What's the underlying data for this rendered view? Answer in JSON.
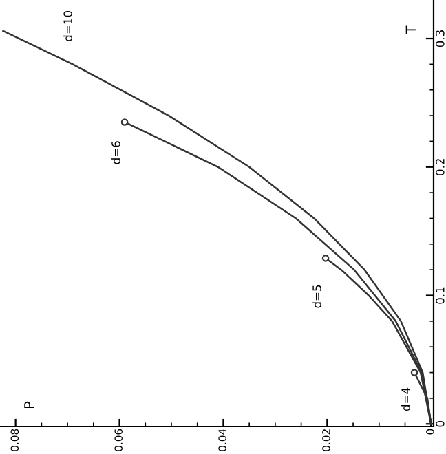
{
  "chart_data": {
    "type": "line",
    "annotations": [
      "P"
    ],
    "ylabel": "T",
    "series": [
      {
        "name": "d=10",
        "color": "#333333",
        "x": [
          0,
          0.0016,
          0.0058,
          0.0128,
          0.0225,
          0.035,
          0.0505,
          0.069,
          0.0824
        ],
        "values": [
          0,
          0.04,
          0.08,
          0.12,
          0.16,
          0.2,
          0.24,
          0.28,
          0.306
        ]
      },
      {
        "name": "d=6",
        "color": "#333333",
        "x": [
          0,
          0.0018,
          0.0068,
          0.0148,
          0.026,
          0.041,
          0.059
        ],
        "values": [
          0,
          0.04,
          0.08,
          0.12,
          0.16,
          0.2,
          0.235
        ]
      },
      {
        "name": "d=5",
        "color": "#333333",
        "x": [
          0,
          0.002,
          0.0075,
          0.012,
          0.017,
          0.0203
        ],
        "values": [
          0,
          0.04,
          0.08,
          0.1,
          0.119,
          0.129
        ]
      },
      {
        "name": "d=4",
        "color": "#333333",
        "x": [
          0,
          0.0007,
          0.0032
        ],
        "values": [
          0,
          0.02,
          0.04
        ]
      },
      {
        "type": "scatter",
        "color": "#333333",
        "marker": "circle",
        "x": [
          0.0032,
          0.0203,
          0.059
        ],
        "values": [
          0.04,
          0.129,
          0.235
        ]
      }
    ],
    "xlim": [
      0.083,
      -0.0005
    ],
    "ylim": [
      -0.002,
      0.33
    ],
    "xticks": [
      0.08,
      {
        "value": 0.075,
        "label": null
      },
      {
        "value": 0.07,
        "label": null
      },
      {
        "value": 0.065,
        "label": null
      },
      0.06,
      {
        "value": 0.055,
        "label": null
      },
      {
        "value": 0.05,
        "label": null
      },
      {
        "value": 0.045,
        "label": null
      },
      0.04,
      {
        "value": 0.035,
        "label": null
      },
      {
        "value": 0.03,
        "label": null
      },
      {
        "value": 0.025,
        "label": null
      },
      0.02,
      {
        "value": 0.015,
        "label": null
      },
      {
        "value": 0.01,
        "label": null
      },
      {
        "value": 0.005,
        "label": null
      },
      0
    ],
    "yticks": [
      0,
      {
        "value": 0.02,
        "label": null
      },
      {
        "value": 0.04,
        "label": null
      },
      {
        "value": 0.06,
        "label": null
      },
      {
        "value": 0.08,
        "label": null
      },
      0.1,
      {
        "value": 0.12,
        "label": null
      },
      {
        "value": 0.14,
        "label": null
      },
      {
        "value": 0.16,
        "label": null
      },
      {
        "value": 0.18,
        "label": null
      },
      0.2,
      {
        "value": 0.22,
        "label": null
      },
      {
        "value": 0.24,
        "label": null
      },
      {
        "value": 0.26,
        "label": null
      },
      {
        "value": 0.28,
        "label": null
      },
      0.3
    ],
    "grid": false,
    "legend": false
  }
}
